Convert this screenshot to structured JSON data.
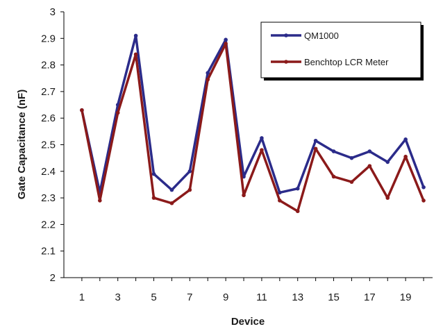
{
  "chart_data": {
    "type": "line",
    "title": "",
    "xlabel": "Device",
    "ylabel": "Gate Capacitance (nF)",
    "x": [
      1,
      2,
      3,
      4,
      5,
      6,
      7,
      8,
      9,
      10,
      11,
      12,
      13,
      14,
      15,
      16,
      17,
      18,
      19,
      20
    ],
    "xlim": [
      0,
      20.5
    ],
    "ylim": [
      2,
      3
    ],
    "x_ticks": [
      1,
      3,
      5,
      7,
      9,
      11,
      13,
      15,
      17,
      19
    ],
    "x_tick_labels": [
      "1",
      "3",
      "5",
      "7",
      "9",
      "11",
      "13",
      "15",
      "17",
      "19"
    ],
    "y_ticks": [
      2,
      2.1,
      2.2,
      2.3,
      2.4,
      2.5,
      2.6,
      2.7,
      2.8,
      2.9,
      3
    ],
    "y_tick_labels": [
      "2",
      "2.1",
      "2.2",
      "2.3",
      "2.4",
      "2.5",
      "2.6",
      "2.7",
      "2.8",
      "2.9",
      "3"
    ],
    "grid": false,
    "legend_position": "top-right",
    "series": [
      {
        "name": "QM1000",
        "color": "#2b2b8a",
        "values": [
          2.63,
          2.32,
          2.65,
          2.91,
          2.39,
          2.33,
          2.4,
          2.77,
          2.895,
          2.38,
          2.525,
          2.32,
          2.335,
          2.515,
          2.475,
          2.45,
          2.475,
          2.435,
          2.52,
          2.34
        ]
      },
      {
        "name": "Benchtop LCR Meter",
        "color": "#8b1a1a",
        "values": [
          2.63,
          2.29,
          2.62,
          2.84,
          2.3,
          2.28,
          2.33,
          2.745,
          2.88,
          2.31,
          2.48,
          2.29,
          2.25,
          2.485,
          2.38,
          2.36,
          2.42,
          2.3,
          2.455,
          2.29
        ]
      }
    ]
  }
}
